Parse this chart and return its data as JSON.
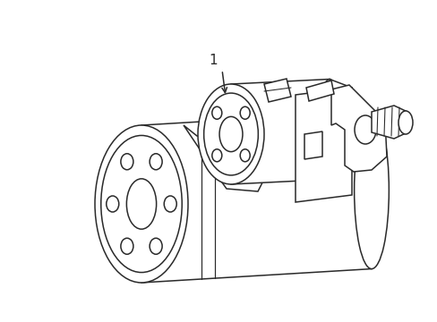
{
  "bg_color": "#ffffff",
  "line_color": "#2a2a2a",
  "line_width": 1.1,
  "label": "1",
  "figsize": [
    4.89,
    3.6
  ],
  "dpi": 100
}
